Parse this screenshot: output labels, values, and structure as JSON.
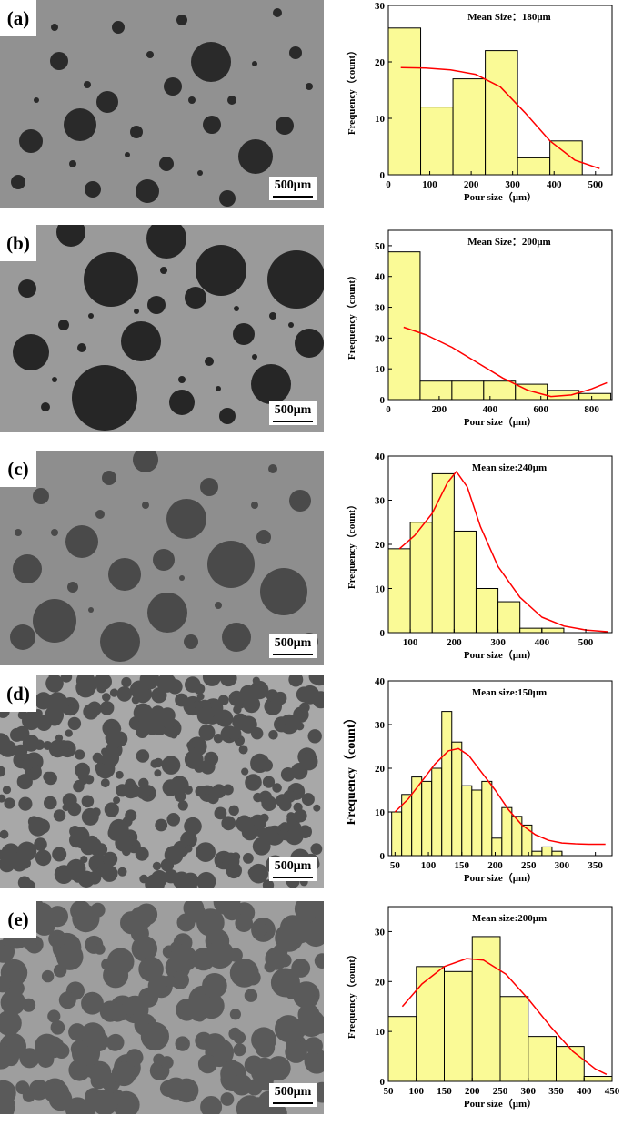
{
  "panels": [
    {
      "label": "(a)",
      "scale": "500μm",
      "chart_data": {
        "type": "bar",
        "title": "Mean Size：180μm",
        "xlabel": "Pour size（μm）",
        "ylabel": "Frequency（count）",
        "xlim": [
          0,
          540
        ],
        "ylim": [
          0,
          30
        ],
        "xticks": [
          0,
          100,
          200,
          300,
          400,
          500
        ],
        "yticks": [
          0,
          10,
          20,
          30
        ],
        "bin_width": 78,
        "bins": [
          39,
          117,
          195,
          273,
          351,
          429
        ],
        "values": [
          26,
          12,
          17,
          22,
          3,
          6
        ],
        "fit": [
          [
            30,
            19
          ],
          [
            90,
            18.9
          ],
          [
            150,
            18.6
          ],
          [
            210,
            17.8
          ],
          [
            270,
            15.6
          ],
          [
            330,
            11
          ],
          [
            390,
            6
          ],
          [
            450,
            2.6
          ],
          [
            510,
            1.1
          ]
        ],
        "bar_color": "#fafa96",
        "fit_color": "#ff0000"
      }
    },
    {
      "label": "(b)",
      "scale": "500μm",
      "chart_data": {
        "type": "bar",
        "title": "Mean Size：200μm",
        "xlabel": "Pour size（μm）",
        "ylabel": "Frequency（count）",
        "xlim": [
          0,
          880
        ],
        "ylim": [
          0,
          55
        ],
        "xticks": [
          0,
          200,
          400,
          600,
          800
        ],
        "yticks": [
          0,
          10,
          20,
          30,
          40,
          50
        ],
        "bin_width": 125,
        "bins": [
          62.5,
          187.5,
          312.5,
          437.5,
          562.5,
          687.5,
          812.5
        ],
        "values": [
          48,
          6,
          6,
          6,
          5,
          3,
          2
        ],
        "fit": [
          [
            60,
            23.5
          ],
          [
            150,
            21
          ],
          [
            250,
            17
          ],
          [
            350,
            12
          ],
          [
            450,
            7
          ],
          [
            550,
            3
          ],
          [
            640,
            1
          ],
          [
            720,
            1.5
          ],
          [
            800,
            3.5
          ],
          [
            860,
            5.5
          ]
        ],
        "bar_color": "#fafa96",
        "fit_color": "#ff0000"
      }
    },
    {
      "label": "(c)",
      "scale": "500μm",
      "chart_data": {
        "type": "bar",
        "title": "Mean size:240μm",
        "xlabel": "Pour size（μm）",
        "ylabel": "Frequency（count）",
        "xlim": [
          50,
          560
        ],
        "ylim": [
          0,
          40
        ],
        "xticks": [
          100,
          200,
          300,
          400,
          500
        ],
        "yticks": [
          0,
          10,
          20,
          30,
          40
        ],
        "bin_width": 50,
        "bins": [
          75,
          125,
          175,
          225,
          275,
          325,
          375,
          425,
          475,
          525
        ],
        "values": [
          19,
          25,
          36,
          23,
          10,
          7,
          1,
          1,
          0,
          0
        ],
        "fit": [
          [
            75,
            19
          ],
          [
            110,
            22
          ],
          [
            150,
            27
          ],
          [
            185,
            34
          ],
          [
            205,
            36.5
          ],
          [
            230,
            33
          ],
          [
            260,
            24
          ],
          [
            300,
            15
          ],
          [
            350,
            8
          ],
          [
            400,
            3.5
          ],
          [
            450,
            1.5
          ],
          [
            500,
            0.6
          ],
          [
            550,
            0.2
          ]
        ],
        "bar_color": "#fafa96",
        "fit_color": "#ff0000"
      }
    },
    {
      "label": "(d)",
      "scale": "500μm",
      "chart_data": {
        "type": "bar",
        "title": "Mean size:150μm",
        "xlabel": "Pour size（μm）",
        "ylabel": "Frequency（count）",
        "xlim": [
          40,
          375
        ],
        "ylim": [
          0,
          40
        ],
        "xticks": [
          50,
          100,
          150,
          200,
          250,
          300,
          350
        ],
        "yticks": [
          0,
          10,
          20,
          30,
          40
        ],
        "bin_width": 15,
        "bins": [
          52.5,
          67.5,
          82.5,
          97.5,
          112.5,
          127.5,
          142.5,
          157.5,
          172.5,
          187.5,
          202.5,
          217.5,
          232.5,
          247.5,
          262.5,
          277.5,
          292.5,
          307.5,
          322.5,
          337.5,
          352.5
        ],
        "values": [
          10,
          14,
          18,
          17,
          20,
          33,
          26,
          16,
          15,
          17,
          4,
          11,
          9,
          7,
          1,
          2,
          1,
          0,
          0,
          0,
          0
        ],
        "fit": [
          [
            50,
            10
          ],
          [
            70,
            13
          ],
          [
            90,
            17
          ],
          [
            110,
            21
          ],
          [
            130,
            24
          ],
          [
            145,
            24.5
          ],
          [
            160,
            23
          ],
          [
            180,
            19
          ],
          [
            200,
            15
          ],
          [
            220,
            10.5
          ],
          [
            240,
            7
          ],
          [
            260,
            4.8
          ],
          [
            280,
            3.5
          ],
          [
            300,
            2.9
          ],
          [
            320,
            2.7
          ],
          [
            340,
            2.6
          ],
          [
            365,
            2.6
          ]
        ],
        "bar_color": "#fafa96",
        "fit_color": "#ff0000"
      }
    },
    {
      "label": "(e)",
      "scale": "500μm",
      "chart_data": {
        "type": "bar",
        "title": "Mean size:200μm",
        "xlabel": "Pour size（μm）",
        "ylabel": "Frequency（count）",
        "xlim": [
          50,
          450
        ],
        "ylim": [
          0,
          35
        ],
        "xticks": [
          50,
          100,
          150,
          200,
          250,
          300,
          350,
          400,
          450
        ],
        "yticks": [
          0,
          10,
          20,
          30
        ],
        "bin_width": 50,
        "bins": [
          75,
          125,
          175,
          225,
          275,
          325,
          375,
          425
        ],
        "values": [
          13,
          23,
          22,
          29,
          17,
          9,
          7,
          1
        ],
        "fit": [
          [
            75,
            15
          ],
          [
            110,
            19.5
          ],
          [
            150,
            23
          ],
          [
            190,
            24.6
          ],
          [
            220,
            24.3
          ],
          [
            260,
            21.5
          ],
          [
            300,
            16.5
          ],
          [
            340,
            11
          ],
          [
            380,
            6
          ],
          [
            420,
            2.5
          ],
          [
            440,
            1.4
          ]
        ],
        "bar_color": "#fafa96",
        "fit_color": "#ff0000"
      }
    }
  ]
}
